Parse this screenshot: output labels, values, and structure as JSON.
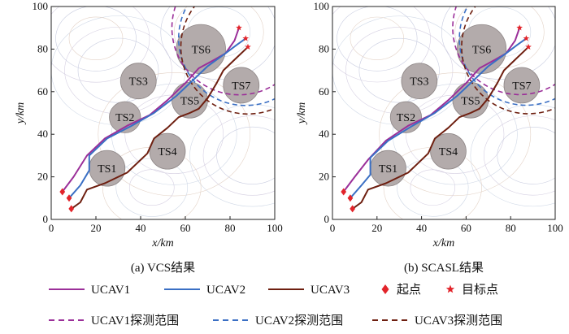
{
  "colors": {
    "ucav1": "#9b2f99",
    "ucav2": "#3a6fc4",
    "ucav3": "#6e1f10",
    "marker": "#e2242a",
    "threat": "#b3abab",
    "threat_edge": "#8f8787"
  },
  "chart_data": [
    {
      "type": "line",
      "caption": "(a) VCS结果",
      "xlabel": "x/km",
      "ylabel": "y/km",
      "xlim": [
        0,
        100
      ],
      "ylim": [
        0,
        100
      ],
      "xticks": [
        "0",
        "20",
        "40",
        "60",
        "80",
        "100"
      ],
      "yticks": [
        "0",
        "20",
        "40",
        "60",
        "80",
        "100"
      ],
      "threats": [
        {
          "label": "TS1",
          "x": 25,
          "y": 24,
          "r": 8
        },
        {
          "label": "TS2",
          "x": 33,
          "y": 48,
          "r": 7
        },
        {
          "label": "TS3",
          "x": 39,
          "y": 65,
          "r": 8
        },
        {
          "label": "TS4",
          "x": 52,
          "y": 32,
          "r": 8
        },
        {
          "label": "TS5",
          "x": 62,
          "y": 56,
          "r": 8
        },
        {
          "label": "TS6",
          "x": 67,
          "y": 80,
          "r": 11
        },
        {
          "label": "TS7",
          "x": 85,
          "y": 63,
          "r": 8
        }
      ],
      "series": [
        {
          "name": "UCAV1",
          "points": [
            [
              5,
              13
            ],
            [
              10,
              20
            ],
            [
              16,
              30
            ],
            [
              24,
              38
            ],
            [
              34,
              44
            ],
            [
              44,
              49
            ],
            [
              52,
              56
            ],
            [
              60,
              64
            ],
            [
              66,
              71
            ],
            [
              73,
              75
            ],
            [
              78,
              78
            ],
            [
              82,
              84
            ],
            [
              84,
              90
            ]
          ]
        },
        {
          "name": "UCAV2",
          "points": [
            [
              8,
              10
            ],
            [
              13,
              16
            ],
            [
              17,
              23
            ],
            [
              17,
              30
            ],
            [
              25,
              38
            ],
            [
              36,
              44
            ],
            [
              46,
              50
            ],
            [
              56,
              58
            ],
            [
              64,
              66
            ],
            [
              70,
              72
            ],
            [
              78,
              78
            ],
            [
              83,
              82
            ],
            [
              87,
              85
            ]
          ]
        },
        {
          "name": "UCAV3",
          "points": [
            [
              9,
              5
            ],
            [
              13,
              8
            ],
            [
              16,
              14
            ],
            [
              24,
              17
            ],
            [
              34,
              22
            ],
            [
              43,
              31
            ],
            [
              46,
              38
            ],
            [
              52,
              43
            ],
            [
              57,
              48
            ],
            [
              62,
              50
            ],
            [
              66,
              52
            ],
            [
              70,
              57
            ],
            [
              74,
              64
            ],
            [
              77,
              70
            ],
            [
              82,
              75
            ],
            [
              88,
              81
            ]
          ]
        }
      ],
      "starts": [
        [
          5,
          13
        ],
        [
          8,
          10
        ],
        [
          9,
          5
        ]
      ],
      "targets": [
        [
          84,
          90
        ],
        [
          87,
          85
        ],
        [
          88,
          81
        ]
      ],
      "detection_ranges": [
        {
          "name": "UCAV1探测范围",
          "cx": 84,
          "cy": 90,
          "r": 30
        },
        {
          "name": "UCAV2探测范围",
          "cx": 87,
          "cy": 85,
          "r": 30
        },
        {
          "name": "UCAV3探测范围",
          "cx": 88,
          "cy": 81,
          "r": 30
        }
      ]
    },
    {
      "type": "line",
      "caption": "(b) SCASL结果",
      "xlabel": "x/km",
      "ylabel": "y/km",
      "xlim": [
        0,
        100
      ],
      "ylim": [
        0,
        100
      ],
      "xticks": [
        "0",
        "20",
        "40",
        "60",
        "80",
        "100"
      ],
      "yticks": [
        "0",
        "20",
        "40",
        "60",
        "80",
        "100"
      ],
      "threats": [
        {
          "label": "TS1",
          "x": 25,
          "y": 24,
          "r": 8
        },
        {
          "label": "TS2",
          "x": 33,
          "y": 48,
          "r": 7
        },
        {
          "label": "TS3",
          "x": 39,
          "y": 65,
          "r": 8
        },
        {
          "label": "TS4",
          "x": 52,
          "y": 32,
          "r": 8
        },
        {
          "label": "TS5",
          "x": 62,
          "y": 56,
          "r": 8
        },
        {
          "label": "TS6",
          "x": 67,
          "y": 80,
          "r": 11
        },
        {
          "label": "TS7",
          "x": 85,
          "y": 63,
          "r": 8
        }
      ],
      "series": [
        {
          "name": "UCAV1",
          "points": [
            [
              5,
              13
            ],
            [
              10,
              20
            ],
            [
              16,
              28
            ],
            [
              24,
              37
            ],
            [
              34,
              44
            ],
            [
              44,
              49
            ],
            [
              52,
              56
            ],
            [
              60,
              64
            ],
            [
              66,
              71
            ],
            [
              73,
              75
            ],
            [
              78,
              78
            ],
            [
              82,
              84
            ],
            [
              84,
              90
            ]
          ]
        },
        {
          "name": "UCAV2",
          "points": [
            [
              8,
              10
            ],
            [
              13,
              16
            ],
            [
              17,
              21
            ],
            [
              17,
              29
            ],
            [
              25,
              37
            ],
            [
              36,
              44
            ],
            [
              46,
              50
            ],
            [
              56,
              58
            ],
            [
              64,
              66
            ],
            [
              70,
              72
            ],
            [
              78,
              78
            ],
            [
              83,
              82
            ],
            [
              87,
              85
            ]
          ]
        },
        {
          "name": "UCAV3",
          "points": [
            [
              9,
              5
            ],
            [
              13,
              8
            ],
            [
              16,
              14
            ],
            [
              24,
              17
            ],
            [
              34,
              22
            ],
            [
              43,
              31
            ],
            [
              46,
              38
            ],
            [
              52,
              43
            ],
            [
              57,
              48
            ],
            [
              62,
              50
            ],
            [
              66,
              52
            ],
            [
              70,
              57
            ],
            [
              74,
              64
            ],
            [
              77,
              70
            ],
            [
              82,
              75
            ],
            [
              88,
              81
            ]
          ]
        }
      ],
      "starts": [
        [
          5,
          13
        ],
        [
          8,
          10
        ],
        [
          9,
          5
        ]
      ],
      "targets": [
        [
          84,
          90
        ],
        [
          87,
          85
        ],
        [
          88,
          81
        ]
      ],
      "detection_ranges": [
        {
          "name": "UCAV1探测范围",
          "cx": 84,
          "cy": 90,
          "r": 30
        },
        {
          "name": "UCAV2探测范围",
          "cx": 87,
          "cy": 85,
          "r": 30
        },
        {
          "name": "UCAV3探测范围",
          "cx": 88,
          "cy": 81,
          "r": 30
        }
      ]
    }
  ],
  "legend": {
    "items": [
      {
        "label": "UCAV1",
        "kind": "line",
        "color": "#9b2f99"
      },
      {
        "label": "UCAV2",
        "kind": "line",
        "color": "#3a6fc4"
      },
      {
        "label": "UCAV3",
        "kind": "line",
        "color": "#6e1f10"
      },
      {
        "label": "起点",
        "kind": "diamond",
        "color": "#e2242a"
      },
      {
        "label": "目标点",
        "kind": "star",
        "color": "#e2242a"
      },
      {
        "label": "UCAV1探测范围",
        "kind": "dash",
        "color": "#9b2f99"
      },
      {
        "label": "UCAV2探测范围",
        "kind": "dash",
        "color": "#3a6fc4"
      },
      {
        "label": "UCAV3探测范围",
        "kind": "dash",
        "color": "#6e1f10"
      }
    ]
  }
}
